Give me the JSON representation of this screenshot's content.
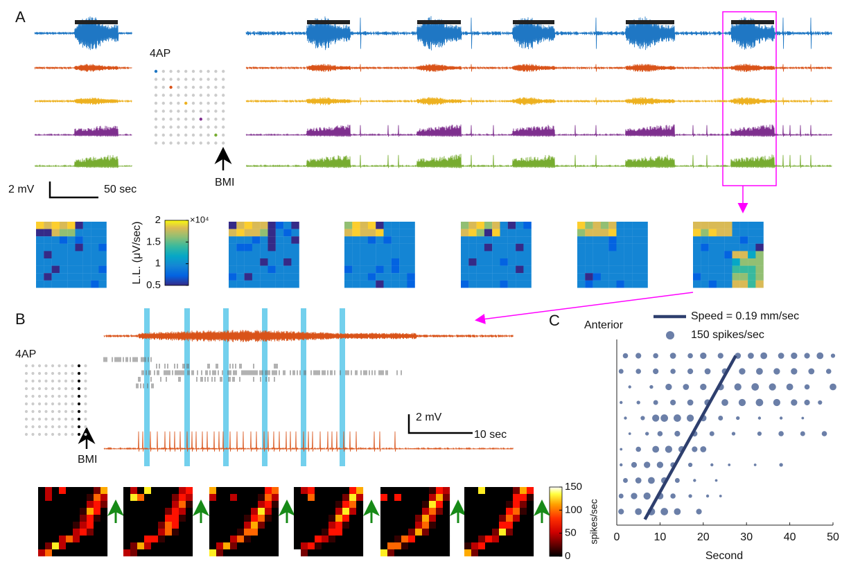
{
  "panel_labels": [
    "A",
    "B",
    "C"
  ],
  "panel_a": {
    "drug": "4AP",
    "site": "BMI",
    "scale_v": "2 mV",
    "scale_t": "50 sec",
    "colorbar": {
      "label": "L.L. (μV/sec)",
      "multiplier": "×10⁴",
      "lim": [
        0.5,
        2
      ],
      "ticks": [
        0.5,
        1,
        1.5,
        2
      ]
    }
  },
  "panel_b": {
    "drug": "4AP",
    "site": "BMI",
    "scale_v": "2 mV",
    "scale_t": "10 sec",
    "colorbar": {
      "label": "spikes/sec",
      "lim": [
        0,
        150
      ],
      "ticks": [
        0,
        50,
        100,
        150
      ]
    }
  },
  "chart_data": {
    "type": "bubble",
    "ylabel": "Anterior",
    "xlabel": "Second",
    "xlim": [
      0,
      50
    ],
    "xticks": [
      0,
      10,
      20,
      30,
      40,
      50
    ],
    "ylim": [
      0.4,
      11.6
    ],
    "color": "#6b7fa8",
    "fit": {
      "name": "Speed = 0.19 mm/sec",
      "color": "#2e3f6e",
      "x": [
        6.5,
        27.5
      ],
      "y": [
        0.5,
        11
      ]
    },
    "size_legend": {
      "label": "150 spikes/sec",
      "value": 150
    },
    "points": [
      {
        "y": 11,
        "x": [
          2,
          5,
          9,
          13,
          17,
          20,
          24,
          28,
          31,
          34,
          38,
          41,
          44,
          47,
          50
        ],
        "size": [
          60,
          70,
          60,
          80,
          60,
          90,
          70,
          80,
          80,
          100,
          80,
          90,
          70,
          100,
          40
        ]
      },
      {
        "y": 10,
        "x": [
          1,
          5,
          9,
          13,
          17,
          21,
          25,
          29,
          33,
          37,
          41,
          45,
          49
        ],
        "size": [
          50,
          60,
          70,
          60,
          70,
          80,
          80,
          90,
          100,
          90,
          90,
          80,
          60
        ]
      },
      {
        "y": 9,
        "x": [
          3,
          8,
          12,
          16,
          20,
          24,
          28,
          32,
          36,
          40,
          44,
          50
        ],
        "size": [
          20,
          30,
          90,
          80,
          90,
          100,
          110,
          120,
          110,
          100,
          60,
          100
        ]
      },
      {
        "y": 8,
        "x": [
          1,
          5,
          9,
          13,
          17,
          21,
          25,
          29,
          33,
          37,
          41,
          44,
          47
        ],
        "size": [
          20,
          30,
          50,
          70,
          80,
          90,
          100,
          110,
          120,
          110,
          90,
          70,
          40
        ]
      },
      {
        "y": 7,
        "x": [
          2,
          6,
          9,
          11,
          14,
          17,
          20,
          24,
          28,
          33,
          38,
          43
        ],
        "size": [
          20,
          40,
          110,
          120,
          120,
          110,
          90,
          50,
          30,
          20,
          20,
          15
        ]
      },
      {
        "y": 6,
        "x": [
          3,
          7,
          10,
          14,
          18,
          22,
          27,
          33,
          38,
          43,
          48
        ],
        "size": [
          15,
          30,
          60,
          70,
          70,
          50,
          30,
          40,
          60,
          50,
          60
        ]
      },
      {
        "y": 5,
        "x": [
          1,
          5,
          9,
          12,
          15,
          18,
          20
        ],
        "size": [
          15,
          60,
          100,
          110,
          90,
          70,
          80
        ]
      },
      {
        "y": 4,
        "x": [
          1,
          4,
          7,
          10,
          13,
          17,
          22,
          26,
          32,
          38
        ],
        "size": [
          20,
          70,
          90,
          90,
          60,
          40,
          20,
          15,
          15,
          30
        ]
      },
      {
        "y": 3,
        "x": [
          2,
          5,
          8,
          11,
          14,
          18,
          23
        ],
        "size": [
          50,
          80,
          100,
          90,
          50,
          20,
          15
        ]
      },
      {
        "y": 2,
        "x": [
          1,
          4,
          7,
          10,
          13,
          17,
          21,
          24
        ],
        "size": [
          50,
          90,
          110,
          100,
          60,
          30,
          20,
          15
        ]
      },
      {
        "y": 1,
        "x": [
          1,
          5,
          8,
          11,
          14,
          19
        ],
        "size": [
          70,
          100,
          120,
          120,
          100,
          70
        ]
      }
    ]
  }
}
